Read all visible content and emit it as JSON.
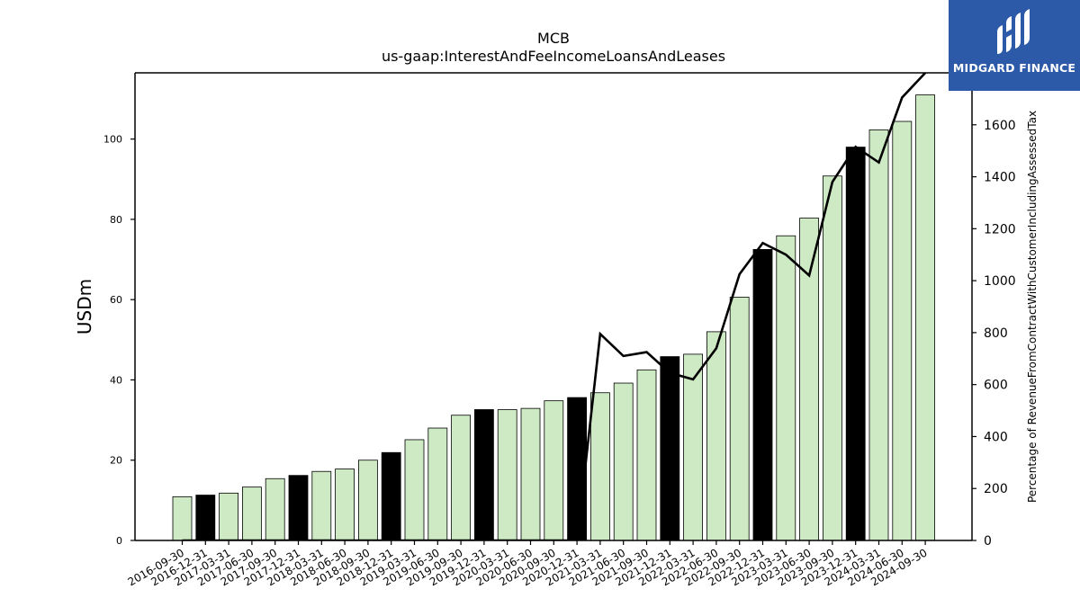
{
  "chart_data": {
    "type": "bar",
    "title": "MCB",
    "subtitle": "us-gaap:InterestAndFeeIncomeLoansAndLeases",
    "ylabel": "USDm",
    "y2label": "Percentage of RevenueFromContractWithCustomerIncludingAssessedTax",
    "ylim": [
      0,
      116.5
    ],
    "y2lim": [
      0,
      1800
    ],
    "yticks": [
      0,
      20,
      40,
      60,
      80,
      100
    ],
    "y2ticks": [
      0,
      200,
      400,
      600,
      800,
      1000,
      1200,
      1400,
      1600
    ],
    "categories": [
      "2016-09-30",
      "2016-12-31",
      "2017-03-31",
      "2017-06-30",
      "2017-09-30",
      "2017-12-31",
      "2018-03-31",
      "2018-06-30",
      "2018-09-30",
      "2018-12-31",
      "2019-03-31",
      "2019-06-30",
      "2019-09-30",
      "2019-12-31",
      "2020-03-31",
      "2020-06-30",
      "2020-09-30",
      "2020-12-31",
      "2021-03-31",
      "2021-06-30",
      "2021-09-30",
      "2021-12-31",
      "2022-03-31",
      "2022-06-30",
      "2022-09-30",
      "2022-12-31",
      "2023-03-31",
      "2023-06-30",
      "2023-09-30",
      "2023-12-31",
      "2024-03-31",
      "2024-06-30",
      "2024-09-30"
    ],
    "series": [
      {
        "type": "bar",
        "values": [
          10.9,
          11.3,
          11.8,
          13.3,
          15.4,
          16.2,
          17.2,
          17.8,
          20.0,
          21.9,
          25.1,
          28.0,
          31.2,
          32.6,
          32.6,
          32.9,
          34.8,
          35.6,
          36.8,
          39.2,
          42.5,
          45.8,
          46.4,
          52.0,
          60.6,
          72.5,
          75.9,
          80.3,
          90.8,
          98.0,
          102.3,
          104.4,
          111.0
        ],
        "highlight": [
          false,
          true,
          false,
          false,
          false,
          true,
          false,
          false,
          false,
          true,
          false,
          false,
          false,
          true,
          false,
          false,
          false,
          true,
          false,
          false,
          false,
          true,
          false,
          false,
          false,
          true,
          false,
          false,
          false,
          true,
          false,
          false,
          false
        ]
      },
      {
        "type": "line",
        "axis": "right",
        "values": [
          0,
          0,
          0,
          0,
          0,
          0,
          0,
          0,
          0,
          0,
          0,
          0,
          0,
          0,
          0,
          0,
          0,
          0,
          795,
          710,
          725,
          645,
          620,
          740,
          1025,
          1145,
          1100,
          1020,
          1380,
          1515,
          1455,
          1705,
          1800
        ]
      }
    ],
    "colors": {
      "bar": "#cdeac4",
      "bar_highlight": "#000000",
      "line": "#000000"
    },
    "grid": false
  },
  "logo": {
    "text": "MIDGARD FINANCE",
    "color": "#2d5aa8"
  }
}
